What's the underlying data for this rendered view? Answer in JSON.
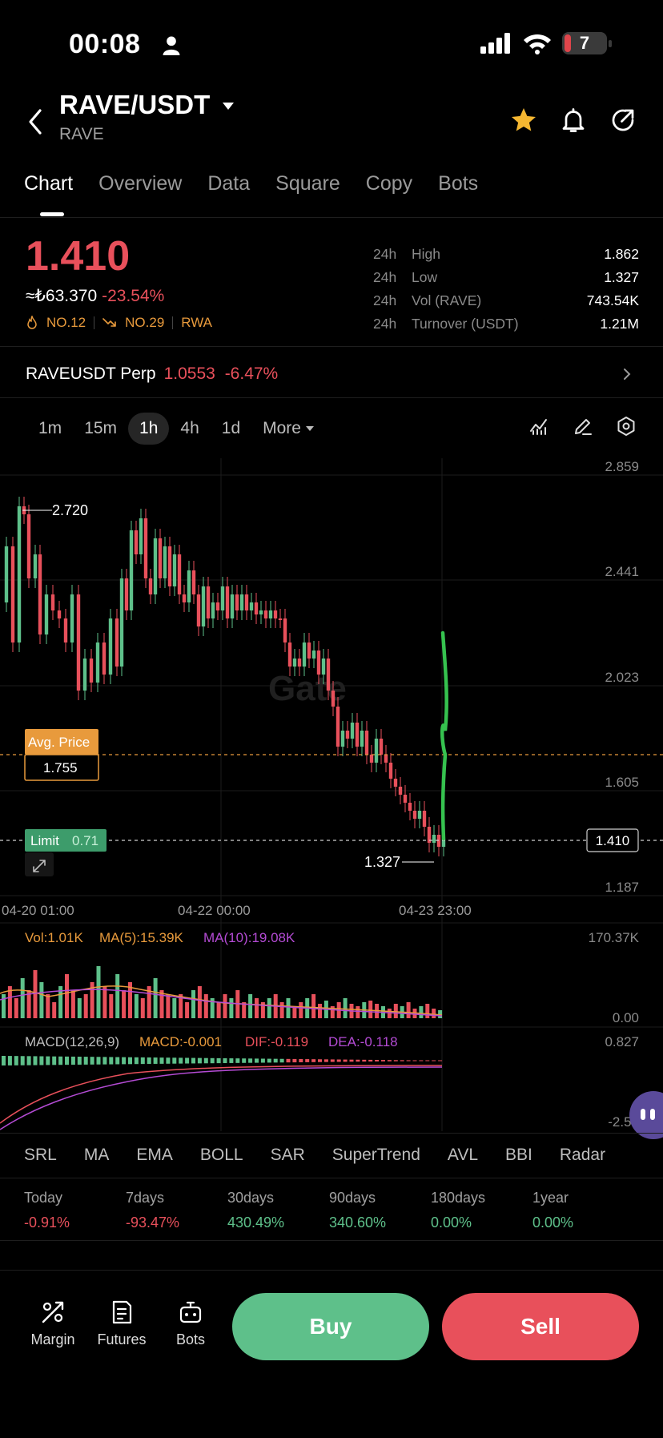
{
  "status_bar": {
    "time": "00:08",
    "battery": "7"
  },
  "header": {
    "pair": "RAVE/USDT",
    "base": "RAVE"
  },
  "tabs": [
    "Chart",
    "Overview",
    "Data",
    "Square",
    "Copy",
    "Bots"
  ],
  "price": {
    "last": "1.410",
    "fiat": "≈₺63.370",
    "change": "-23.54%",
    "rank1": "NO.12",
    "rank2": "NO.29",
    "tag": "RWA"
  },
  "stats": [
    {
      "period": "24h",
      "label": "High",
      "value": "1.862"
    },
    {
      "period": "24h",
      "label": "Low",
      "value": "1.327"
    },
    {
      "period": "24h",
      "label": "Vol (RAVE)",
      "value": "743.54K"
    },
    {
      "period": "24h",
      "label": "Turnover (USDT)",
      "value": "1.21M"
    }
  ],
  "perp": {
    "name": "RAVEUSDT Perp",
    "price": "1.0553",
    "change": "-6.47%"
  },
  "timeframes": [
    "1m",
    "15m",
    "1h",
    "4h",
    "1d",
    "More"
  ],
  "chart": {
    "price_axis": [
      "2.859",
      "2.441",
      "2.023",
      "1.605",
      "1.187"
    ],
    "time_axis": [
      "04-20 01:00",
      "04-22 00:00",
      "04-23 23:00"
    ],
    "high_label": "2.720",
    "low_label": "1.327",
    "avg_price_label": "Avg. Price",
    "avg_price": "1.755",
    "limit_label": "Limit",
    "limit_value": "0.71",
    "current_price": "1.410",
    "watermark": "Gate",
    "colors": {
      "up": "#5ec08a",
      "down": "#e8505b",
      "avg": "#e89a3c"
    }
  },
  "volume": {
    "vol": "Vol:1.01K",
    "ma5": "MA(5):15.39K",
    "ma10": "MA(10):19.08K",
    "axis_top": "170.37K",
    "axis_bottom": "0.00"
  },
  "macd": {
    "title": "MACD(12,26,9)",
    "macd": "MACD:-0.001",
    "dif": "DIF:-0.119",
    "dea": "DEA:-0.118",
    "axis_top": "0.827",
    "axis_bottom": "-2.54"
  },
  "indicators": [
    "SRL",
    "MA",
    "EMA",
    "BOLL",
    "SAR",
    "SuperTrend",
    "AVL",
    "BBI",
    "Radar"
  ],
  "performance": [
    {
      "label": "Today",
      "value": "-0.91%",
      "dir": "red"
    },
    {
      "label": "7days",
      "value": "-93.47%",
      "dir": "red"
    },
    {
      "label": "30days",
      "value": "430.49%",
      "dir": "green"
    },
    {
      "label": "90days",
      "value": "340.60%",
      "dir": "green"
    },
    {
      "label": "180days",
      "value": "0.00%",
      "dir": "green"
    },
    {
      "label": "1year",
      "value": "0.00%",
      "dir": "green"
    }
  ],
  "bottom": {
    "margin": "Margin",
    "futures": "Futures",
    "bots": "Bots",
    "buy": "Buy",
    "sell": "Sell"
  }
}
